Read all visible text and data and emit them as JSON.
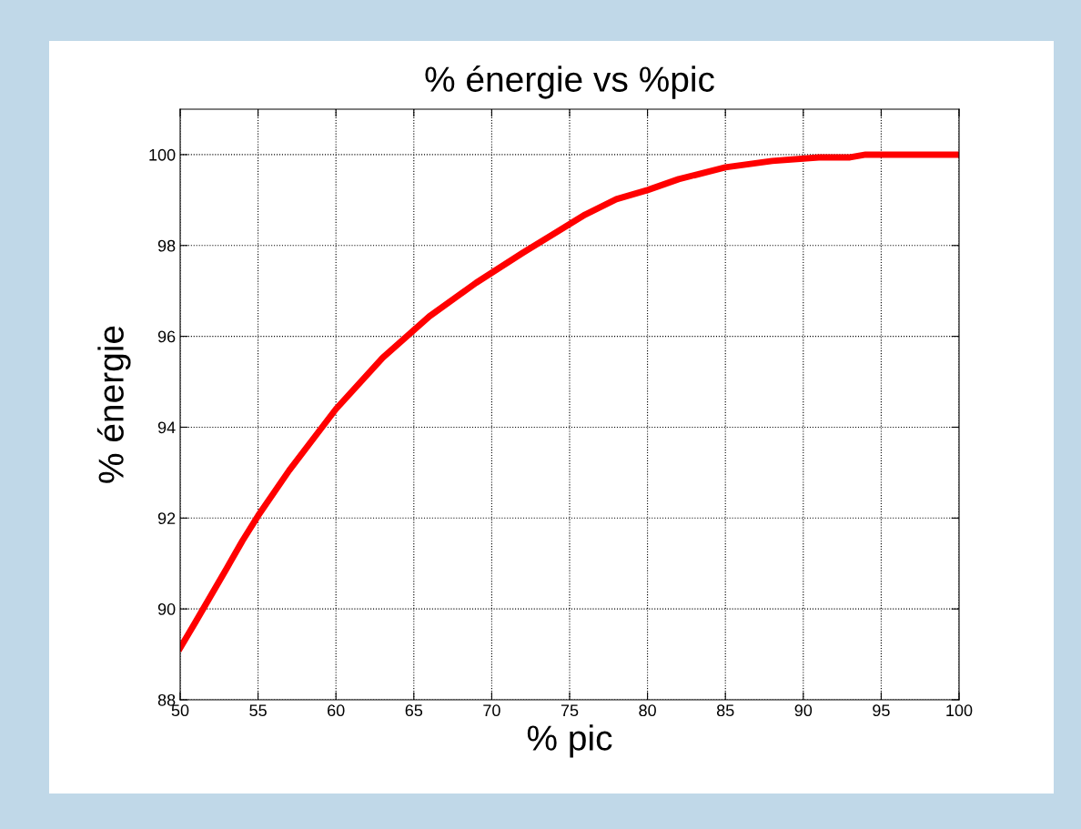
{
  "chart_data": {
    "type": "line",
    "title": "% énergie vs %pic",
    "xlabel": "% pic",
    "ylabel": "% énergie",
    "x": [
      50,
      51,
      53,
      54,
      55,
      57,
      60,
      63,
      66,
      69,
      72,
      76,
      78,
      80,
      82,
      85,
      88,
      91,
      93,
      94,
      100
    ],
    "series": [
      {
        "color": "#ff0000",
        "values": [
          89.14,
          89.72,
          90.9,
          91.5,
          92.05,
          93.05,
          94.4,
          95.53,
          96.44,
          97.18,
          97.84,
          98.68,
          99.02,
          99.22,
          99.46,
          99.72,
          99.86,
          99.94,
          99.94,
          100,
          100
        ]
      }
    ],
    "xlim": [
      50,
      100
    ],
    "xticks": [
      50,
      55,
      60,
      65,
      70,
      75,
      80,
      85,
      90,
      95,
      100
    ],
    "ylim": [
      88,
      101
    ],
    "yticks": [
      88,
      90,
      92,
      94,
      96,
      98,
      100
    ],
    "grid": true,
    "line_style": "solid",
    "legend": false
  }
}
